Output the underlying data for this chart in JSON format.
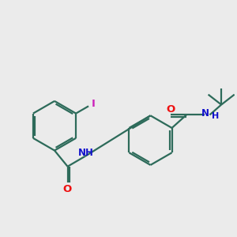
{
  "bg_color": "#ebebeb",
  "bond_color": "#2d6b5a",
  "bond_lw": 1.6,
  "atom_colors": {
    "O": "#ee1111",
    "N": "#1111cc",
    "I": "#cc22bb",
    "C": "#2d6b5a"
  },
  "font_size": 8.5,
  "figsize": [
    3.0,
    3.0
  ],
  "dpi": 100
}
